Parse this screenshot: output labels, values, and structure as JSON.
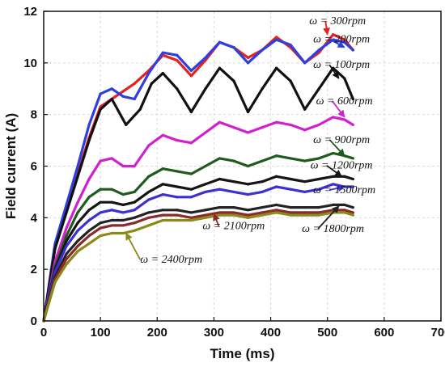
{
  "chart_data": {
    "type": "line",
    "title": "",
    "xlabel": "Time (ms)",
    "ylabel": "Field current (A)",
    "xlim": [
      0,
      700
    ],
    "ylim": [
      0,
      12
    ],
    "xticks": [
      0,
      100,
      200,
      300,
      400,
      500,
      600,
      700
    ],
    "yticks": [
      0,
      2,
      4,
      6,
      8,
      10,
      12
    ],
    "grid": true,
    "series": [
      {
        "name": "ω = 300rpm",
        "color": "#e8201c",
        "x": [
          0,
          20,
          40,
          60,
          80,
          100,
          120,
          140,
          160,
          185,
          210,
          235,
          260,
          285,
          310,
          335,
          360,
          385,
          410,
          435,
          460,
          485,
          510,
          530,
          545
        ],
        "y": [
          0,
          2.8,
          4.3,
          5.7,
          7.1,
          8.3,
          8.6,
          8.9,
          9.2,
          9.7,
          10.3,
          10.1,
          9.5,
          10.1,
          10.8,
          10.6,
          10.2,
          10.5,
          11.0,
          10.6,
          10.0,
          10.4,
          11.1,
          10.9,
          10.5
        ]
      },
      {
        "name": "ω = 200rpm",
        "color": "#2e3fe0",
        "x": [
          0,
          20,
          40,
          60,
          80,
          100,
          120,
          140,
          160,
          185,
          210,
          235,
          260,
          285,
          310,
          335,
          360,
          385,
          410,
          435,
          460,
          485,
          510,
          530,
          545
        ],
        "y": [
          0,
          3.0,
          4.5,
          6.0,
          7.6,
          8.8,
          9.0,
          8.7,
          8.6,
          9.6,
          10.4,
          10.3,
          9.7,
          10.2,
          10.8,
          10.6,
          10.0,
          10.5,
          10.9,
          10.7,
          10.0,
          10.5,
          10.9,
          10.8,
          10.5
        ]
      },
      {
        "name": "ω = 100rpm",
        "color": "#111111",
        "x": [
          0,
          20,
          40,
          60,
          80,
          100,
          120,
          145,
          170,
          190,
          210,
          235,
          260,
          285,
          310,
          335,
          360,
          385,
          410,
          435,
          460,
          485,
          510,
          530,
          545
        ],
        "y": [
          0,
          2.8,
          4.2,
          5.6,
          7.0,
          8.2,
          8.6,
          7.6,
          8.2,
          9.2,
          9.6,
          9.0,
          8.1,
          9.0,
          9.8,
          9.3,
          8.1,
          9.0,
          9.8,
          9.3,
          8.2,
          9.0,
          9.8,
          9.4,
          8.6
        ]
      },
      {
        "name": "ω = 600rpm",
        "color": "#d020d0",
        "x": [
          0,
          20,
          40,
          60,
          80,
          100,
          120,
          140,
          160,
          185,
          210,
          235,
          260,
          285,
          310,
          335,
          360,
          385,
          410,
          435,
          460,
          485,
          510,
          530,
          545
        ],
        "y": [
          0,
          2.3,
          3.6,
          4.6,
          5.5,
          6.2,
          6.3,
          6.0,
          6.0,
          6.8,
          7.2,
          7.0,
          6.9,
          7.3,
          7.7,
          7.5,
          7.3,
          7.5,
          7.7,
          7.6,
          7.4,
          7.6,
          7.9,
          7.8,
          7.6
        ]
      },
      {
        "name": "ω = 900rpm",
        "color": "#1f5b1f",
        "x": [
          0,
          20,
          40,
          60,
          80,
          100,
          120,
          140,
          160,
          185,
          210,
          235,
          260,
          285,
          310,
          335,
          360,
          385,
          410,
          435,
          460,
          485,
          510,
          530,
          545
        ],
        "y": [
          0,
          2.1,
          3.3,
          4.2,
          4.8,
          5.1,
          5.1,
          4.9,
          5.0,
          5.6,
          5.9,
          5.8,
          5.7,
          6.0,
          6.3,
          6.2,
          6.0,
          6.2,
          6.4,
          6.3,
          6.2,
          6.3,
          6.5,
          6.4,
          6.3
        ]
      },
      {
        "name": "ω = 1200rpm",
        "color": "#151515",
        "x": [
          0,
          20,
          40,
          60,
          80,
          100,
          120,
          140,
          160,
          185,
          210,
          235,
          260,
          285,
          310,
          335,
          360,
          385,
          410,
          435,
          460,
          485,
          510,
          530,
          545
        ],
        "y": [
          0,
          2.0,
          3.1,
          3.8,
          4.3,
          4.6,
          4.6,
          4.5,
          4.6,
          5.0,
          5.3,
          5.2,
          5.1,
          5.3,
          5.5,
          5.4,
          5.3,
          5.4,
          5.6,
          5.5,
          5.4,
          5.5,
          5.6,
          5.6,
          5.5
        ]
      },
      {
        "name": "ω = 1500rpm",
        "color": "#3d2fd0",
        "x": [
          0,
          20,
          40,
          60,
          80,
          100,
          120,
          140,
          160,
          185,
          210,
          235,
          260,
          285,
          310,
          335,
          360,
          385,
          410,
          435,
          460,
          485,
          510,
          530,
          545
        ],
        "y": [
          0,
          1.9,
          2.9,
          3.5,
          3.9,
          4.2,
          4.3,
          4.2,
          4.3,
          4.7,
          4.9,
          4.8,
          4.8,
          5.0,
          5.1,
          5.0,
          4.9,
          5.0,
          5.2,
          5.1,
          5.0,
          5.1,
          5.3,
          5.2,
          5.2
        ]
      },
      {
        "name": "ω = 1800rpm",
        "color": "#222222",
        "x": [
          0,
          20,
          40,
          60,
          80,
          100,
          120,
          140,
          160,
          185,
          210,
          235,
          260,
          285,
          310,
          335,
          360,
          385,
          410,
          435,
          460,
          485,
          510,
          530,
          545
        ],
        "y": [
          0,
          1.7,
          2.6,
          3.1,
          3.5,
          3.8,
          3.9,
          3.9,
          4.0,
          4.2,
          4.3,
          4.3,
          4.2,
          4.3,
          4.4,
          4.4,
          4.3,
          4.4,
          4.5,
          4.4,
          4.4,
          4.4,
          4.5,
          4.5,
          4.4
        ]
      },
      {
        "name": "ω = 2100rpm",
        "color": "#8a2a2a",
        "x": [
          0,
          20,
          40,
          60,
          80,
          100,
          120,
          140,
          160,
          185,
          210,
          235,
          260,
          285,
          310,
          335,
          360,
          385,
          410,
          435,
          460,
          485,
          510,
          530,
          545
        ],
        "y": [
          0,
          1.6,
          2.4,
          2.9,
          3.3,
          3.6,
          3.7,
          3.7,
          3.8,
          4.0,
          4.1,
          4.1,
          4.0,
          4.1,
          4.2,
          4.2,
          4.1,
          4.2,
          4.3,
          4.2,
          4.2,
          4.2,
          4.3,
          4.3,
          4.2
        ]
      },
      {
        "name": "ω = 2400rpm",
        "color": "#8a8a1a",
        "x": [
          0,
          20,
          40,
          60,
          80,
          100,
          120,
          140,
          160,
          185,
          210,
          235,
          260,
          285,
          310,
          335,
          360,
          385,
          410,
          435,
          460,
          485,
          510,
          530,
          545
        ],
        "y": [
          0,
          1.5,
          2.2,
          2.7,
          3.0,
          3.3,
          3.4,
          3.4,
          3.5,
          3.7,
          3.9,
          3.9,
          3.9,
          4.0,
          4.1,
          4.1,
          4.0,
          4.1,
          4.2,
          4.1,
          4.1,
          4.1,
          4.2,
          4.2,
          4.1
        ]
      }
    ],
    "annotations": [
      {
        "text": "ω = 300rpm",
        "series": "ω = 300rpm",
        "label_x": 468,
        "label_y": 11.5,
        "point_x": 500,
        "point_y": 11.1
      },
      {
        "text": "ω = 200rpm",
        "series": "ω = 200rpm",
        "label_x": 475,
        "label_y": 10.8,
        "point_x": 530,
        "point_y": 10.6
      },
      {
        "text": "ω = 100rpm",
        "series": "ω = 100rpm",
        "label_x": 475,
        "label_y": 9.8,
        "point_x": 520,
        "point_y": 9.4
      },
      {
        "text": "ω = 600rpm",
        "series": "ω = 600rpm",
        "label_x": 480,
        "label_y": 8.4,
        "point_x": 530,
        "point_y": 7.9
      },
      {
        "text": "ω = 900rpm",
        "series": "ω = 900rpm",
        "label_x": 475,
        "label_y": 6.9,
        "point_x": 530,
        "point_y": 6.4
      },
      {
        "text": "ω = 1200rpm",
        "series": "ω = 1200rpm",
        "label_x": 470,
        "label_y": 5.9,
        "point_x": 525,
        "point_y": 5.6
      },
      {
        "text": "ω = 1500rpm",
        "series": "ω = 1500rpm",
        "label_x": 475,
        "label_y": 4.95,
        "point_x": 530,
        "point_y": 5.2
      },
      {
        "text": "ω = 1800rpm",
        "series": "ω = 1800rpm",
        "label_x": 455,
        "label_y": 3.45,
        "point_x": 520,
        "point_y": 4.45
      },
      {
        "text": "ω = 2100rpm",
        "series": "ω = 2100rpm",
        "label_x": 280,
        "label_y": 3.55,
        "point_x": 300,
        "point_y": 4.15
      },
      {
        "text": "ω = 2400rpm",
        "series": "ω = 2400rpm",
        "label_x": 170,
        "label_y": 2.25,
        "point_x": 145,
        "point_y": 3.4
      }
    ]
  }
}
